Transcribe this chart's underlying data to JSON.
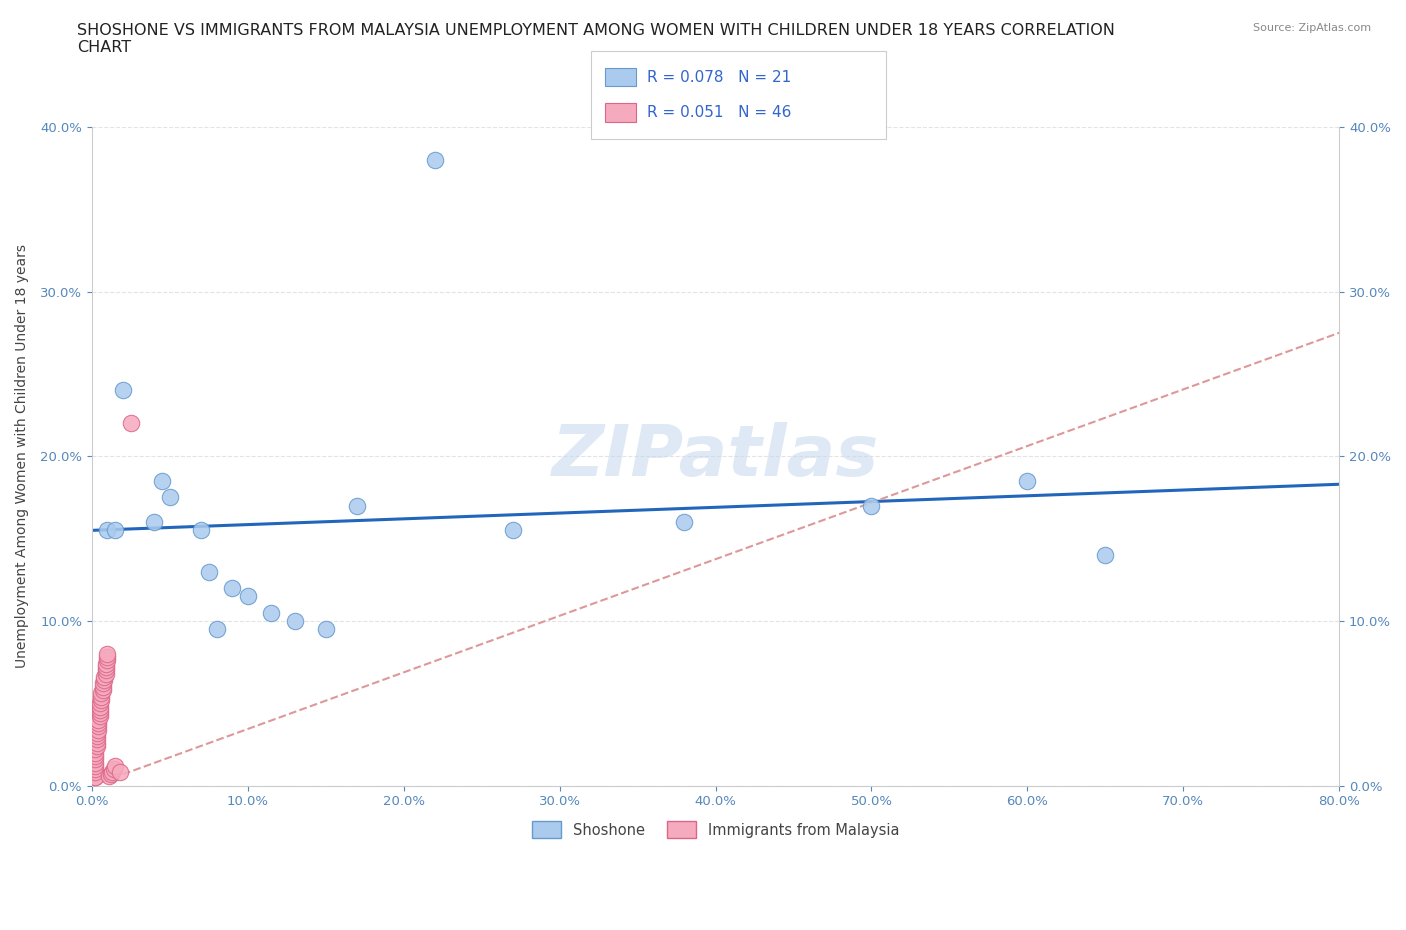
{
  "title_line1": "SHOSHONE VS IMMIGRANTS FROM MALAYSIA UNEMPLOYMENT AMONG WOMEN WITH CHILDREN UNDER 18 YEARS CORRELATION",
  "title_line2": "CHART",
  "source_text": "Source: ZipAtlas.com",
  "ylabel": "Unemployment Among Women with Children Under 18 years",
  "xlim": [
    0.0,
    0.8
  ],
  "ylim": [
    0.0,
    0.4
  ],
  "xticks": [
    0.0,
    0.1,
    0.2,
    0.3,
    0.4,
    0.5,
    0.6,
    0.7,
    0.8
  ],
  "xticklabels": [
    "0.0%",
    "10.0%",
    "20.0%",
    "30.0%",
    "40.0%",
    "50.0%",
    "60.0%",
    "70.0%",
    "80.0%"
  ],
  "yticks": [
    0.0,
    0.1,
    0.2,
    0.3,
    0.4
  ],
  "yticklabels": [
    "0.0%",
    "10.0%",
    "20.0%",
    "30.0%",
    "40.0%"
  ],
  "shoshone_color": "#aacbee",
  "shoshone_edge": "#6699cc",
  "malaysia_color": "#f5aabe",
  "malaysia_edge": "#dd6688",
  "trend_shoshone_color": "#2266bb",
  "trend_malaysia_color": "#dd9999",
  "R_shoshone": 0.078,
  "N_shoshone": 21,
  "R_malaysia": 0.051,
  "N_malaysia": 46,
  "legend_label_shoshone": "Shoshone",
  "legend_label_malaysia": "Immigrants from Malaysia",
  "watermark": "ZIPatlas",
  "shoshone_x": [
    0.01,
    0.015,
    0.04,
    0.05,
    0.07,
    0.075,
    0.09,
    0.1,
    0.115,
    0.13,
    0.15,
    0.17,
    0.02,
    0.045,
    0.08,
    0.6,
    0.65,
    0.5,
    0.38,
    0.27,
    0.22
  ],
  "shoshone_y": [
    0.155,
    0.155,
    0.16,
    0.175,
    0.155,
    0.13,
    0.12,
    0.115,
    0.105,
    0.1,
    0.095,
    0.17,
    0.24,
    0.185,
    0.095,
    0.185,
    0.14,
    0.17,
    0.16,
    0.155,
    0.38
  ],
  "malaysia_x": [
    0.002,
    0.002,
    0.002,
    0.002,
    0.002,
    0.002,
    0.002,
    0.002,
    0.002,
    0.002,
    0.003,
    0.003,
    0.003,
    0.003,
    0.003,
    0.004,
    0.004,
    0.004,
    0.004,
    0.005,
    0.005,
    0.005,
    0.005,
    0.005,
    0.006,
    0.006,
    0.006,
    0.007,
    0.007,
    0.007,
    0.008,
    0.008,
    0.009,
    0.009,
    0.009,
    0.009,
    0.01,
    0.01,
    0.01,
    0.011,
    0.012,
    0.013,
    0.014,
    0.015,
    0.018,
    0.025
  ],
  "malaysia_y": [
    0.005,
    0.005,
    0.008,
    0.01,
    0.012,
    0.014,
    0.016,
    0.018,
    0.02,
    0.022,
    0.024,
    0.026,
    0.028,
    0.03,
    0.032,
    0.034,
    0.036,
    0.038,
    0.04,
    0.042,
    0.044,
    0.046,
    0.048,
    0.05,
    0.052,
    0.054,
    0.056,
    0.058,
    0.06,
    0.062,
    0.064,
    0.066,
    0.068,
    0.07,
    0.072,
    0.074,
    0.076,
    0.078,
    0.08,
    0.006,
    0.007,
    0.008,
    0.01,
    0.012,
    0.008,
    0.22
  ],
  "trend_shoshone_x0": 0.0,
  "trend_shoshone_y0": 0.155,
  "trend_shoshone_x1": 0.8,
  "trend_shoshone_y1": 0.183,
  "trend_malaysia_x0": 0.0,
  "trend_malaysia_y0": 0.0,
  "trend_malaysia_x1": 0.8,
  "trend_malaysia_y1": 0.275,
  "background_color": "#ffffff",
  "grid_color": "#dddddd",
  "title_fontsize": 11.5,
  "axis_label_fontsize": 10,
  "tick_fontsize": 9.5,
  "legend_fontsize": 11
}
